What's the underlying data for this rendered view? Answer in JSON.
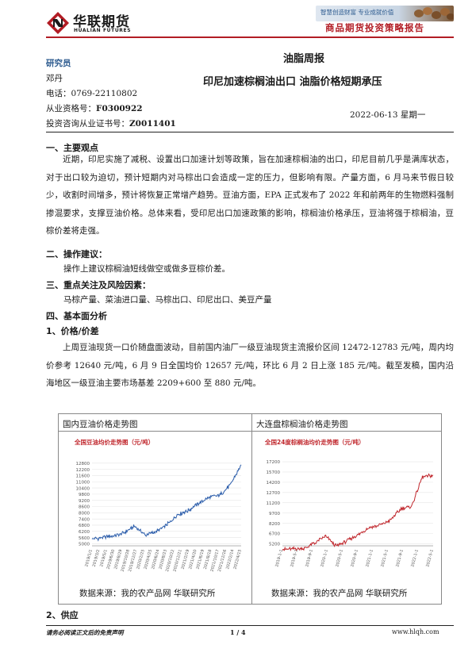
{
  "header": {
    "brand_cn": "华联期货",
    "brand_en": "HUALIAN FUTURES",
    "slogan": "智慧创造财富  专业成就价值",
    "report_type": "商品期货投资策略报告",
    "logo_icon": "hualian-logo-icon",
    "accent_color": "#b21c24"
  },
  "analyst": {
    "label": "研究员",
    "name": "邓丹",
    "phone": "电话：0769-22110802",
    "qual_label": "从业资格号：",
    "qual_no": "F0300922",
    "cert_label": "投资咨询从业证书号：",
    "cert_no": "Z0011401"
  },
  "report": {
    "title": "油脂周报",
    "subtitle": "印尼加速棕榈油出口  油脂价格短期承压",
    "date": "2022-06-13 星期一"
  },
  "sections": {
    "s1_heading": "一、主要观点",
    "s1_body": "近期，印尼实施了减税、设置出口加速计划等政策，旨在加速棕榈油的出口，印尼目前几乎是满库状态，对于出口较为迫切，预计短期内对马棕出口会造成一定的压力，但影响有限。产量方面，6 月马来节假日较少，收割时间增多，预计将恢复正常增产趋势。豆油方面，EPA 正式发布了 2022 年和前两年的生物燃料强制掺混要求，支撑豆油价格。总体来看，受印尼出口加速政策的影响，棕榈油价格承压，豆油将强于棕榈油，豆棕价差将走强。",
    "s2_heading": "二、操作建议：",
    "s2_body": "操作上建议棕榈油短线做空或做多豆棕价差。",
    "s3_heading": "三、重点关注及风险因素：",
    "s3_body": "马棕产量、菜油进口量、马棕出口、印尼出口、美豆产量",
    "s4_heading": "四、基本面分析",
    "s4_sub1": "1、价格/价差",
    "s4_body": "上周豆油现货一口价随盘面波动，目前国内油厂一级豆油现货主流报价区间 12472-12783 元/吨，周内均价参考 12640 元/吨，6 月 9 日全国均价 12657 元/吨，环比 6 月 2 日上涨 185 元/吨。截至发稿，国内沿海地区一级豆油主要市场基差 2209+600 至 880 元/吨。",
    "s4_sub2": "2、供应"
  },
  "charts": {
    "left_caption": "国内豆油价格走势图",
    "right_caption": "大连盘棕榈油价格走势图",
    "source": "数据来源：我的农产品网  华联研究所"
  },
  "chart_data": [
    {
      "type": "line",
      "title": "全国豆油均价走势图（元/吨）",
      "xlabel": "",
      "ylabel": "",
      "ylim": [
        4800,
        13400
      ],
      "yticks": [
        5000,
        5600,
        6200,
        6800,
        7400,
        8000,
        8600,
        9200,
        9800,
        10400,
        11000,
        11600,
        12200,
        12800
      ],
      "x": [
        "2019/1/1",
        "2019/4/1",
        "2019/7/1",
        "2019/10/1",
        "2020/1/1",
        "2020/4/1",
        "2020/7/1",
        "2020/10/1",
        "2021/1/1",
        "2021/4/1",
        "2021/7/1",
        "2021/10/1",
        "2022/1/1",
        "2022/4/1",
        "2022/6/9"
      ],
      "xticks": [
        "2019/1/1",
        "2019/3/2",
        "2019/5/1",
        "2019/6/30",
        "2019/8/29",
        "2019/10/28",
        "2019/12/27",
        "2020/2/25",
        "2020/4/25",
        "2020/6/24",
        "2020/8/23",
        "2020/10/22",
        "2020/12/21",
        "2021/2/19",
        "2021/4/20",
        "2021/6/19",
        "2021/8/18",
        "2021/10/17",
        "2021/12/16",
        "2022/2/14",
        "2022/4/15"
      ],
      "series": [
        {
          "values": [
            5450,
            5600,
            5750,
            6050,
            6700,
            5850,
            6150,
            6800,
            7800,
            8200,
            8900,
            9500,
            9700,
            10700,
            12650
          ]
        }
      ],
      "color": "#2a5caa"
    },
    {
      "type": "line",
      "title": "全国24度棕榈油均价走势图（元/吨）",
      "xlabel": "",
      "ylabel": "",
      "ylim": [
        4900,
        17900
      ],
      "yticks": [
        5200,
        6700,
        8200,
        9700,
        11200,
        12700,
        14200,
        15700,
        17200
      ],
      "x": [
        "2019/1/1",
        "2019/4/1",
        "2019/7/1",
        "2019/10/1",
        "2020/1/1",
        "2020/4/1",
        "2020/7/1",
        "2020/10/1",
        "2021/1/1",
        "2021/4/1",
        "2021/7/1",
        "2021/10/1",
        "2022/1/1",
        "2022/4/1",
        "2022/6/9"
      ],
      "xticks": [
        "2019-1-1",
        "2019-5-1",
        "2019-9-1",
        "2020-1-1",
        "2020-5-1",
        "2020-9-1",
        "2021-1-1",
        "2021-5-1",
        "2021-9-1",
        "2022-1-1",
        "2022-5-1"
      ],
      "series": [
        {
          "values": [
            4400,
            4450,
            4500,
            5300,
            6300,
            4900,
            5600,
            6500,
            7500,
            7900,
            8600,
            10300,
            10700,
            15000,
            15200
          ]
        }
      ],
      "color": "#c0272d"
    }
  ],
  "footer": {
    "disclaimer": "请务必阅读正文后的免责声明",
    "page": "1 / 4",
    "website": "www.hlqh.com"
  }
}
